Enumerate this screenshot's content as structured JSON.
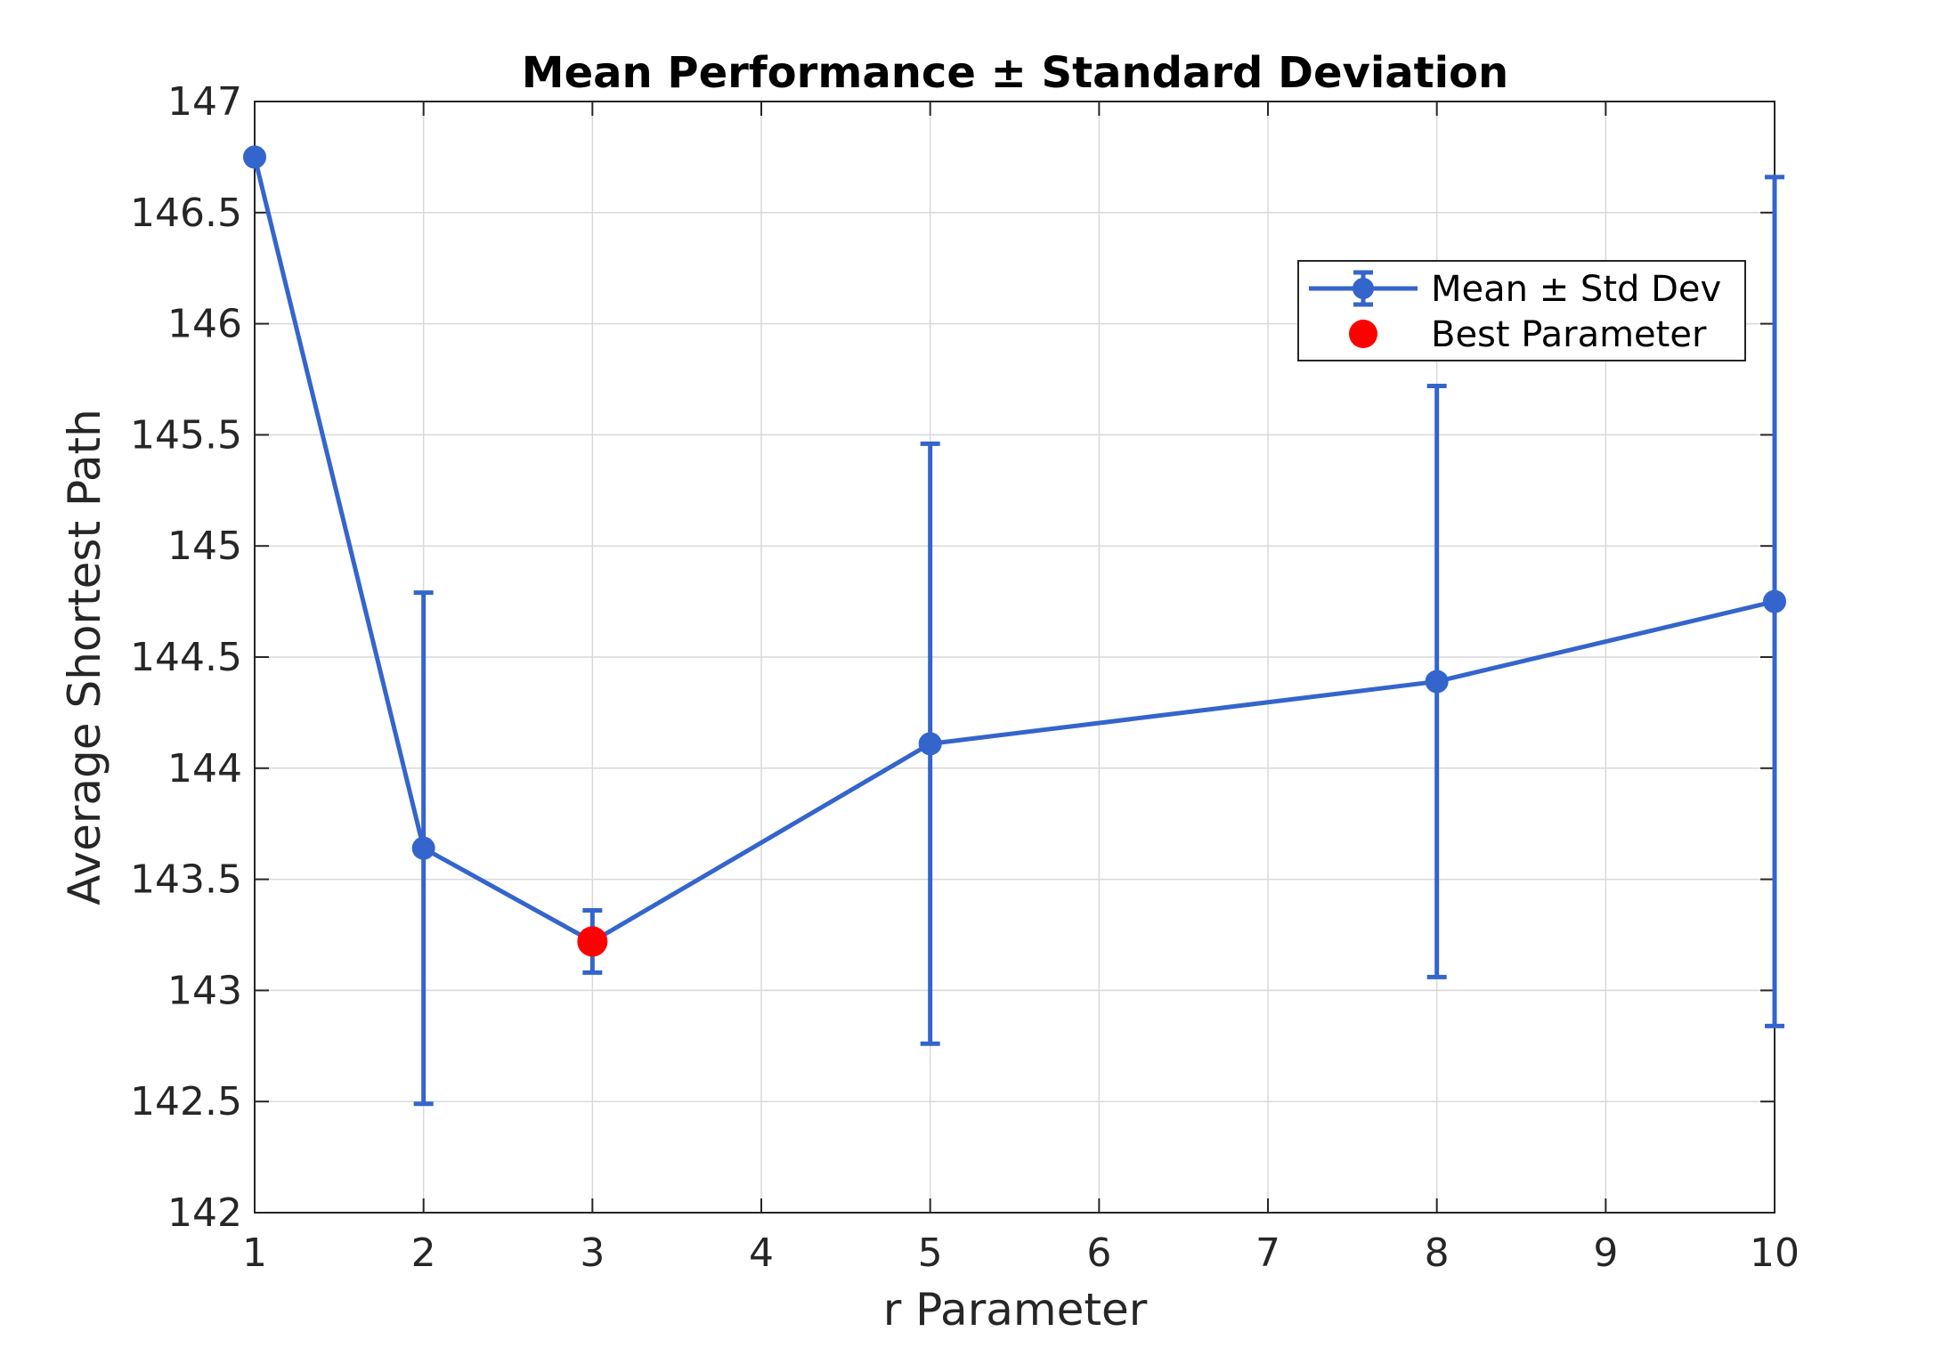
{
  "chart_data": {
    "type": "line",
    "title": "Mean Performance ± Standard Deviation",
    "xlabel": "r Parameter",
    "ylabel": "Average Shortest Path",
    "x_tick_labels": [
      "1",
      "2",
      "3",
      "4",
      "5",
      "6",
      "7",
      "8",
      "9",
      "10"
    ],
    "y_ticks": [
      142,
      142.5,
      143,
      143.5,
      144,
      144.5,
      145,
      145.5,
      146,
      146.5,
      147
    ],
    "y_tick_labels": [
      "142",
      "142.5",
      "143",
      "143.5",
      "144",
      "144.5",
      "145",
      "145.5",
      "146",
      "146.5",
      "147"
    ],
    "ylim": [
      142,
      147
    ],
    "grid": true,
    "legend_position": "top-right",
    "series": [
      {
        "name": "Mean ± Std Dev",
        "color": "#3465cc",
        "points": [
          {
            "x": "1",
            "y": 146.75,
            "err": 0
          },
          {
            "x": "2",
            "y": 143.64,
            "err": 1.15
          },
          {
            "x": "3",
            "y": 143.22,
            "err": 0.14
          },
          {
            "x": "5",
            "y": 144.11,
            "err": 1.35
          },
          {
            "x": "8",
            "y": 144.39,
            "err": 1.33
          },
          {
            "x": "10",
            "y": 144.75,
            "err": 1.91
          }
        ]
      },
      {
        "name": "Best Parameter",
        "color": "#ff0000",
        "points": [
          {
            "x": "3",
            "y": 143.22
          }
        ]
      }
    ]
  }
}
